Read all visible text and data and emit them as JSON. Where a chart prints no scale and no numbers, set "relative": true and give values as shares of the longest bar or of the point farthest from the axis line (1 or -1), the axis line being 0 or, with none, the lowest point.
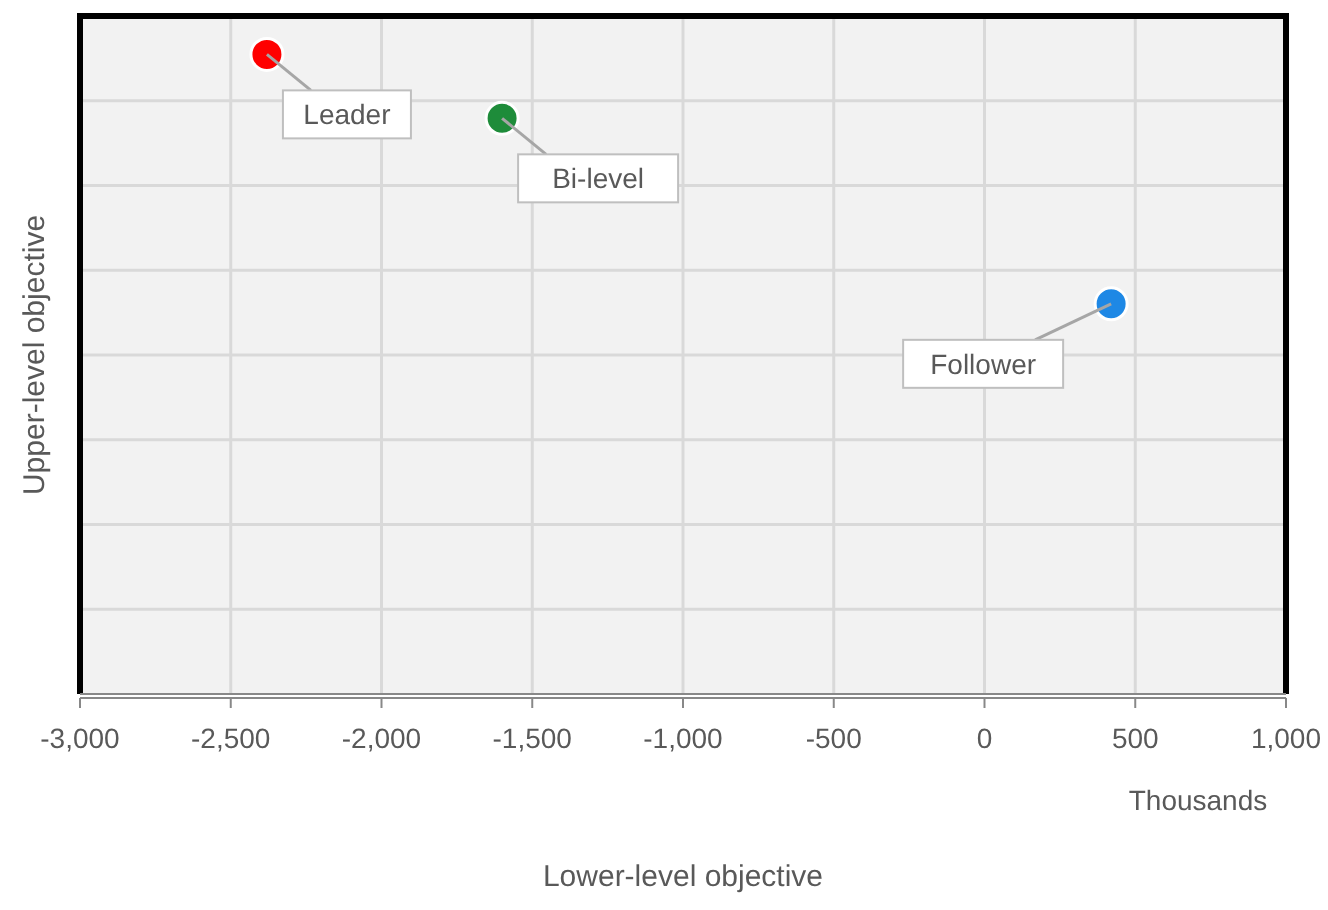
{
  "chart_data": {
    "type": "scatter",
    "relative": true,
    "xlabel": "Lower-level objective",
    "ylabel": "Upper-level objective",
    "x": [
      -2380,
      -1600,
      420
    ],
    "values": [
      1,
      0.9,
      0.61
    ],
    "colors": [
      "#ff0000",
      "#1e8c3a",
      "#1e88e5"
    ],
    "xlim": [
      -3000,
      1000
    ],
    "xticks": [
      {
        "value": -3000,
        "label": "-3,000"
      },
      {
        "value": -2500,
        "label": "-2,500"
      },
      {
        "value": -2000,
        "label": "-2,000"
      },
      {
        "value": -1500,
        "label": "-1,500"
      },
      {
        "value": -1000,
        "label": "-1,000"
      },
      {
        "value": -500,
        "label": "-500"
      },
      0,
      {
        "value": 500,
        "label": "500"
      },
      {
        "value": 1000,
        "label": "1,000"
      }
    ],
    "grid": true,
    "marker": "circle",
    "annotations": [
      {
        "text": "Leader",
        "x": -2380,
        "y": 1
      },
      {
        "text": "Bi-level",
        "x": -1600,
        "y": 0.9
      },
      {
        "text": "Follower",
        "x": 420,
        "y": 0.61
      },
      "Thousands"
    ]
  }
}
